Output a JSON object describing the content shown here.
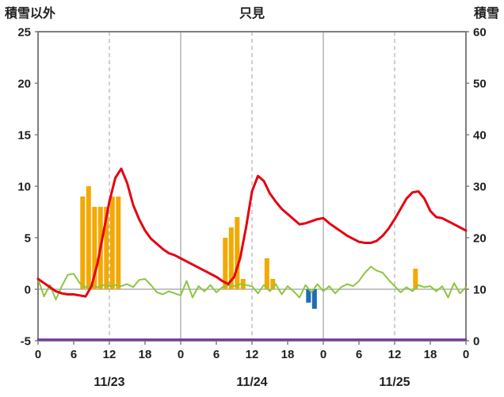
{
  "chart_data": {
    "type": "mixed",
    "title": "只見",
    "left_axis": {
      "label": "積雪以外",
      "min": -5,
      "max": 25,
      "ticks": [
        25,
        20,
        15,
        10,
        5,
        0,
        -5
      ]
    },
    "right_axis": {
      "label": "積雪",
      "min": 0,
      "max": 60,
      "ticks": [
        60,
        50,
        40,
        30,
        20,
        10,
        0
      ]
    },
    "x_axis": {
      "total_hours": 72,
      "tick_interval_hours": 6,
      "tick_labels": [
        "0",
        "6",
        "12",
        "18",
        "0",
        "6",
        "12",
        "18",
        "0",
        "6",
        "12",
        "18",
        "0"
      ],
      "date_labels": [
        "11/23",
        "11/24",
        "11/25"
      ],
      "x_unit": "hour",
      "x_start_hour": 0
    },
    "grid": {
      "solid_vertical_hours": [
        24,
        48
      ],
      "dashed_vertical_hours": [
        12,
        36,
        60
      ],
      "horizontal_left_values": [
        0
      ],
      "color": "#A0A0A0",
      "border_color": "#7F7F7F"
    },
    "series": [
      {
        "name": "orange-bars",
        "type": "bar",
        "axis": "left",
        "color": "#F2A900",
        "points": [
          [
            8,
            9
          ],
          [
            9,
            10
          ],
          [
            10,
            8
          ],
          [
            11,
            8
          ],
          [
            12,
            8
          ],
          [
            13,
            9
          ],
          [
            14,
            9
          ],
          [
            32,
            5
          ],
          [
            33,
            6
          ],
          [
            34,
            7
          ],
          [
            35,
            1
          ],
          [
            39,
            3
          ],
          [
            40,
            1
          ],
          [
            64,
            2
          ]
        ]
      },
      {
        "name": "blue-bars",
        "type": "bar",
        "axis": "left",
        "color": "#1F6BB5",
        "points": [
          [
            46,
            -1.3
          ],
          [
            47,
            -1.9
          ]
        ]
      },
      {
        "name": "green-line",
        "type": "line",
        "axis": "left",
        "color": "#8DC63F",
        "width": 2,
        "values": [
          1.0,
          -0.7,
          0.4,
          -1.0,
          0.3,
          1.4,
          1.5,
          0.6,
          0.2,
          0.4,
          0.2,
          0.4,
          0.3,
          0.4,
          0.3,
          0.5,
          0.2,
          0.9,
          1.0,
          0.4,
          -0.3,
          -0.5,
          -0.2,
          -0.4,
          -0.6,
          0.8,
          -0.8,
          0.3,
          -0.2,
          0.4,
          -0.3,
          0.2,
          0.4,
          0.3,
          0.5,
          0.4,
          0.3,
          -0.4,
          0.4,
          -0.2,
          0.5,
          -0.5,
          0.3,
          -0.2,
          -0.8,
          0.4,
          -0.3,
          0.5,
          -0.2,
          0.3,
          -0.4,
          0.2,
          0.5,
          0.3,
          0.8,
          1.6,
          2.2,
          1.8,
          1.6,
          0.9,
          0.3,
          -0.3,
          0.2,
          -0.2,
          0.4,
          0.2,
          0.3,
          -0.2,
          0.3,
          -0.8,
          0.6,
          -0.4,
          0.2
        ]
      },
      {
        "name": "purple-line",
        "type": "line",
        "axis": "right",
        "color": "#7030A0",
        "width": 2.5,
        "constant": 0
      },
      {
        "name": "red-line",
        "type": "line",
        "axis": "left",
        "color": "#E60012",
        "width": 3,
        "values": [
          1.0,
          0.6,
          0.2,
          -0.2,
          -0.4,
          -0.5,
          -0.5,
          -0.6,
          -0.7,
          0.3,
          2.5,
          5.5,
          8.5,
          10.8,
          11.7,
          10.3,
          8.2,
          6.8,
          5.7,
          4.9,
          4.4,
          3.9,
          3.5,
          3.3,
          3.0,
          2.7,
          2.4,
          2.1,
          1.8,
          1.5,
          1.2,
          0.8,
          0.5,
          1.2,
          3.0,
          6.0,
          9.5,
          11.0,
          10.5,
          9.3,
          8.5,
          7.8,
          7.3,
          6.8,
          6.3,
          6.4,
          6.6,
          6.8,
          6.9,
          6.4,
          6.0,
          5.6,
          5.2,
          4.9,
          4.6,
          4.5,
          4.5,
          4.7,
          5.2,
          5.9,
          6.8,
          7.8,
          8.8,
          9.4,
          9.5,
          8.8,
          7.6,
          7.0,
          6.9,
          6.6,
          6.3,
          6.0,
          5.7
        ]
      }
    ]
  }
}
